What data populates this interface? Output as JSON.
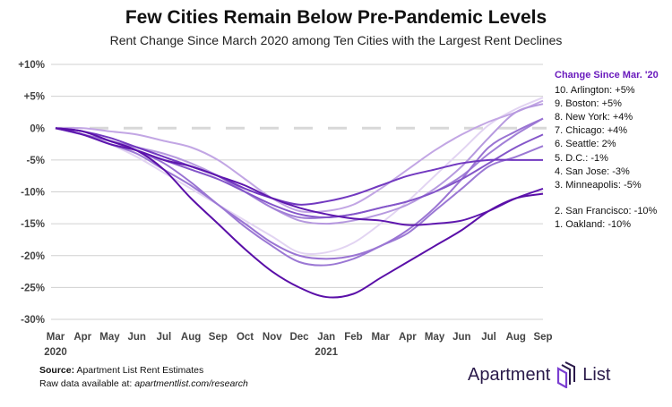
{
  "title": "Few Cities Remain Below Pre-Pandemic Levels",
  "subtitle": "Rent Change Since March 2020 among Ten Cities with the Largest Rent Declines",
  "legend_title": "Change Since Mar. '20",
  "legend": [
    "10. Arlington: +5%",
    "9. Boston: +5%",
    "8. New York: +4%",
    "7. Chicago: +4%",
    "6. Seattle: 2%",
    "5. D.C.: -1%",
    "4. San Jose: -3%",
    "3. Minneapolis: -5%",
    "2. San Francisco: -10%",
    "1. Oakland: -10%"
  ],
  "source_label": "Source:",
  "source_text": "Apartment List Rent Estimates",
  "raw_label": "Raw data available at:",
  "raw_link": "apartmentlist.com/research",
  "logo": "Apartment List",
  "chart_data": {
    "type": "line",
    "title": "Few Cities Remain Below Pre-Pandemic Levels",
    "ylabel": "",
    "xlabel": "",
    "ylim": [
      -30,
      10
    ],
    "yticks": [
      "+10%",
      "+5%",
      "0%",
      "-5%",
      "-10%",
      "-15%",
      "-20%",
      "-25%",
      "-30%"
    ],
    "ytick_values": [
      10,
      5,
      0,
      -5,
      -10,
      -15,
      -20,
      -25,
      -30
    ],
    "categories": [
      "Mar",
      "Apr",
      "May",
      "Jun",
      "Jul",
      "Aug",
      "Sep",
      "Oct",
      "Nov",
      "Dec",
      "Jan",
      "Feb",
      "Mar",
      "Apr",
      "May",
      "Jun",
      "Jul",
      "Aug",
      "Sep"
    ],
    "year_labels": [
      {
        "index": 0,
        "label": "2020"
      },
      {
        "index": 10,
        "label": "2021"
      }
    ],
    "series": [
      {
        "name": "Arlington",
        "color": "#e2d4f2",
        "values": [
          0,
          -1,
          -2.5,
          -4.5,
          -7,
          -9.5,
          -12,
          -14.5,
          -17,
          -19.5,
          -19.5,
          -18,
          -15,
          -11.5,
          -7.5,
          -3.5,
          0.5,
          3,
          4.8
        ]
      },
      {
        "name": "Boston",
        "color": "#c2a6e4",
        "values": [
          0,
          0,
          -0.5,
          -1,
          -2,
          -3,
          -5,
          -8,
          -11,
          -13,
          -13,
          -12,
          -9.5,
          -6.5,
          -3.5,
          -1,
          1,
          2.5,
          4.3
        ]
      },
      {
        "name": "New York",
        "color": "#b699df",
        "values": [
          0,
          -1,
          -2,
          -3,
          -4,
          -5.5,
          -7.5,
          -10,
          -12.5,
          -14.5,
          -15,
          -14.5,
          -13.5,
          -12,
          -9.5,
          -6,
          -1.5,
          2.5,
          3.8
        ]
      },
      {
        "name": "Chicago",
        "color": "#a17fd7",
        "values": [
          0,
          -0.5,
          -2,
          -3,
          -4.5,
          -6,
          -7.5,
          -10,
          -12.5,
          -14,
          -14,
          -13.5,
          -12.5,
          -11.5,
          -10,
          -7.5,
          -4,
          -1,
          1.5
        ]
      },
      {
        "name": "Seattle",
        "color": "#9a74d3",
        "values": [
          0,
          -1,
          -2,
          -3.5,
          -5.5,
          -8.5,
          -12,
          -15,
          -18,
          -20,
          -20.5,
          -20,
          -18.5,
          -16,
          -12.5,
          -8,
          -3,
          -0.5,
          1.5
        ]
      },
      {
        "name": "D.C.",
        "color": "#8456c9",
        "values": [
          0,
          -0.5,
          -2,
          -3.5,
          -5,
          -6.5,
          -8,
          -10,
          -12,
          -13.5,
          -14,
          -13.5,
          -12.5,
          -11.5,
          -10,
          -8,
          -5.5,
          -3,
          -1
        ]
      },
      {
        "name": "San Jose",
        "color": "#9b78d4",
        "values": [
          0,
          -1,
          -2.5,
          -4,
          -6.5,
          -9,
          -12,
          -15.5,
          -18.5,
          -21,
          -21.5,
          -20.5,
          -18.5,
          -16.5,
          -13,
          -9.5,
          -6,
          -4.5,
          -2.8
        ]
      },
      {
        "name": "Minneapolis",
        "color": "#7239c0",
        "values": [
          0,
          -0.5,
          -1.5,
          -3,
          -4.5,
          -6,
          -7.5,
          -9.5,
          -11,
          -12,
          -11.5,
          -10.5,
          -9,
          -7.5,
          -6.5,
          -5.5,
          -5,
          -5,
          -5
        ]
      },
      {
        "name": "San Francisco",
        "color": "#5e17ae",
        "values": [
          0,
          -1,
          -2.5,
          -3.5,
          -5,
          -6,
          -7.5,
          -9,
          -11,
          -12.5,
          -13.5,
          -14.2,
          -14.5,
          -15.2,
          -15,
          -14.5,
          -13,
          -11,
          -9.5
        ]
      },
      {
        "name": "Oakland",
        "color": "#5a0fa8",
        "values": [
          0,
          -0.5,
          -2,
          -3.5,
          -6.5,
          -11,
          -15,
          -19,
          -22.5,
          -25,
          -26.5,
          -26,
          -23.5,
          -21,
          -18.5,
          -16,
          -13,
          -11,
          -10.3
        ]
      }
    ]
  }
}
